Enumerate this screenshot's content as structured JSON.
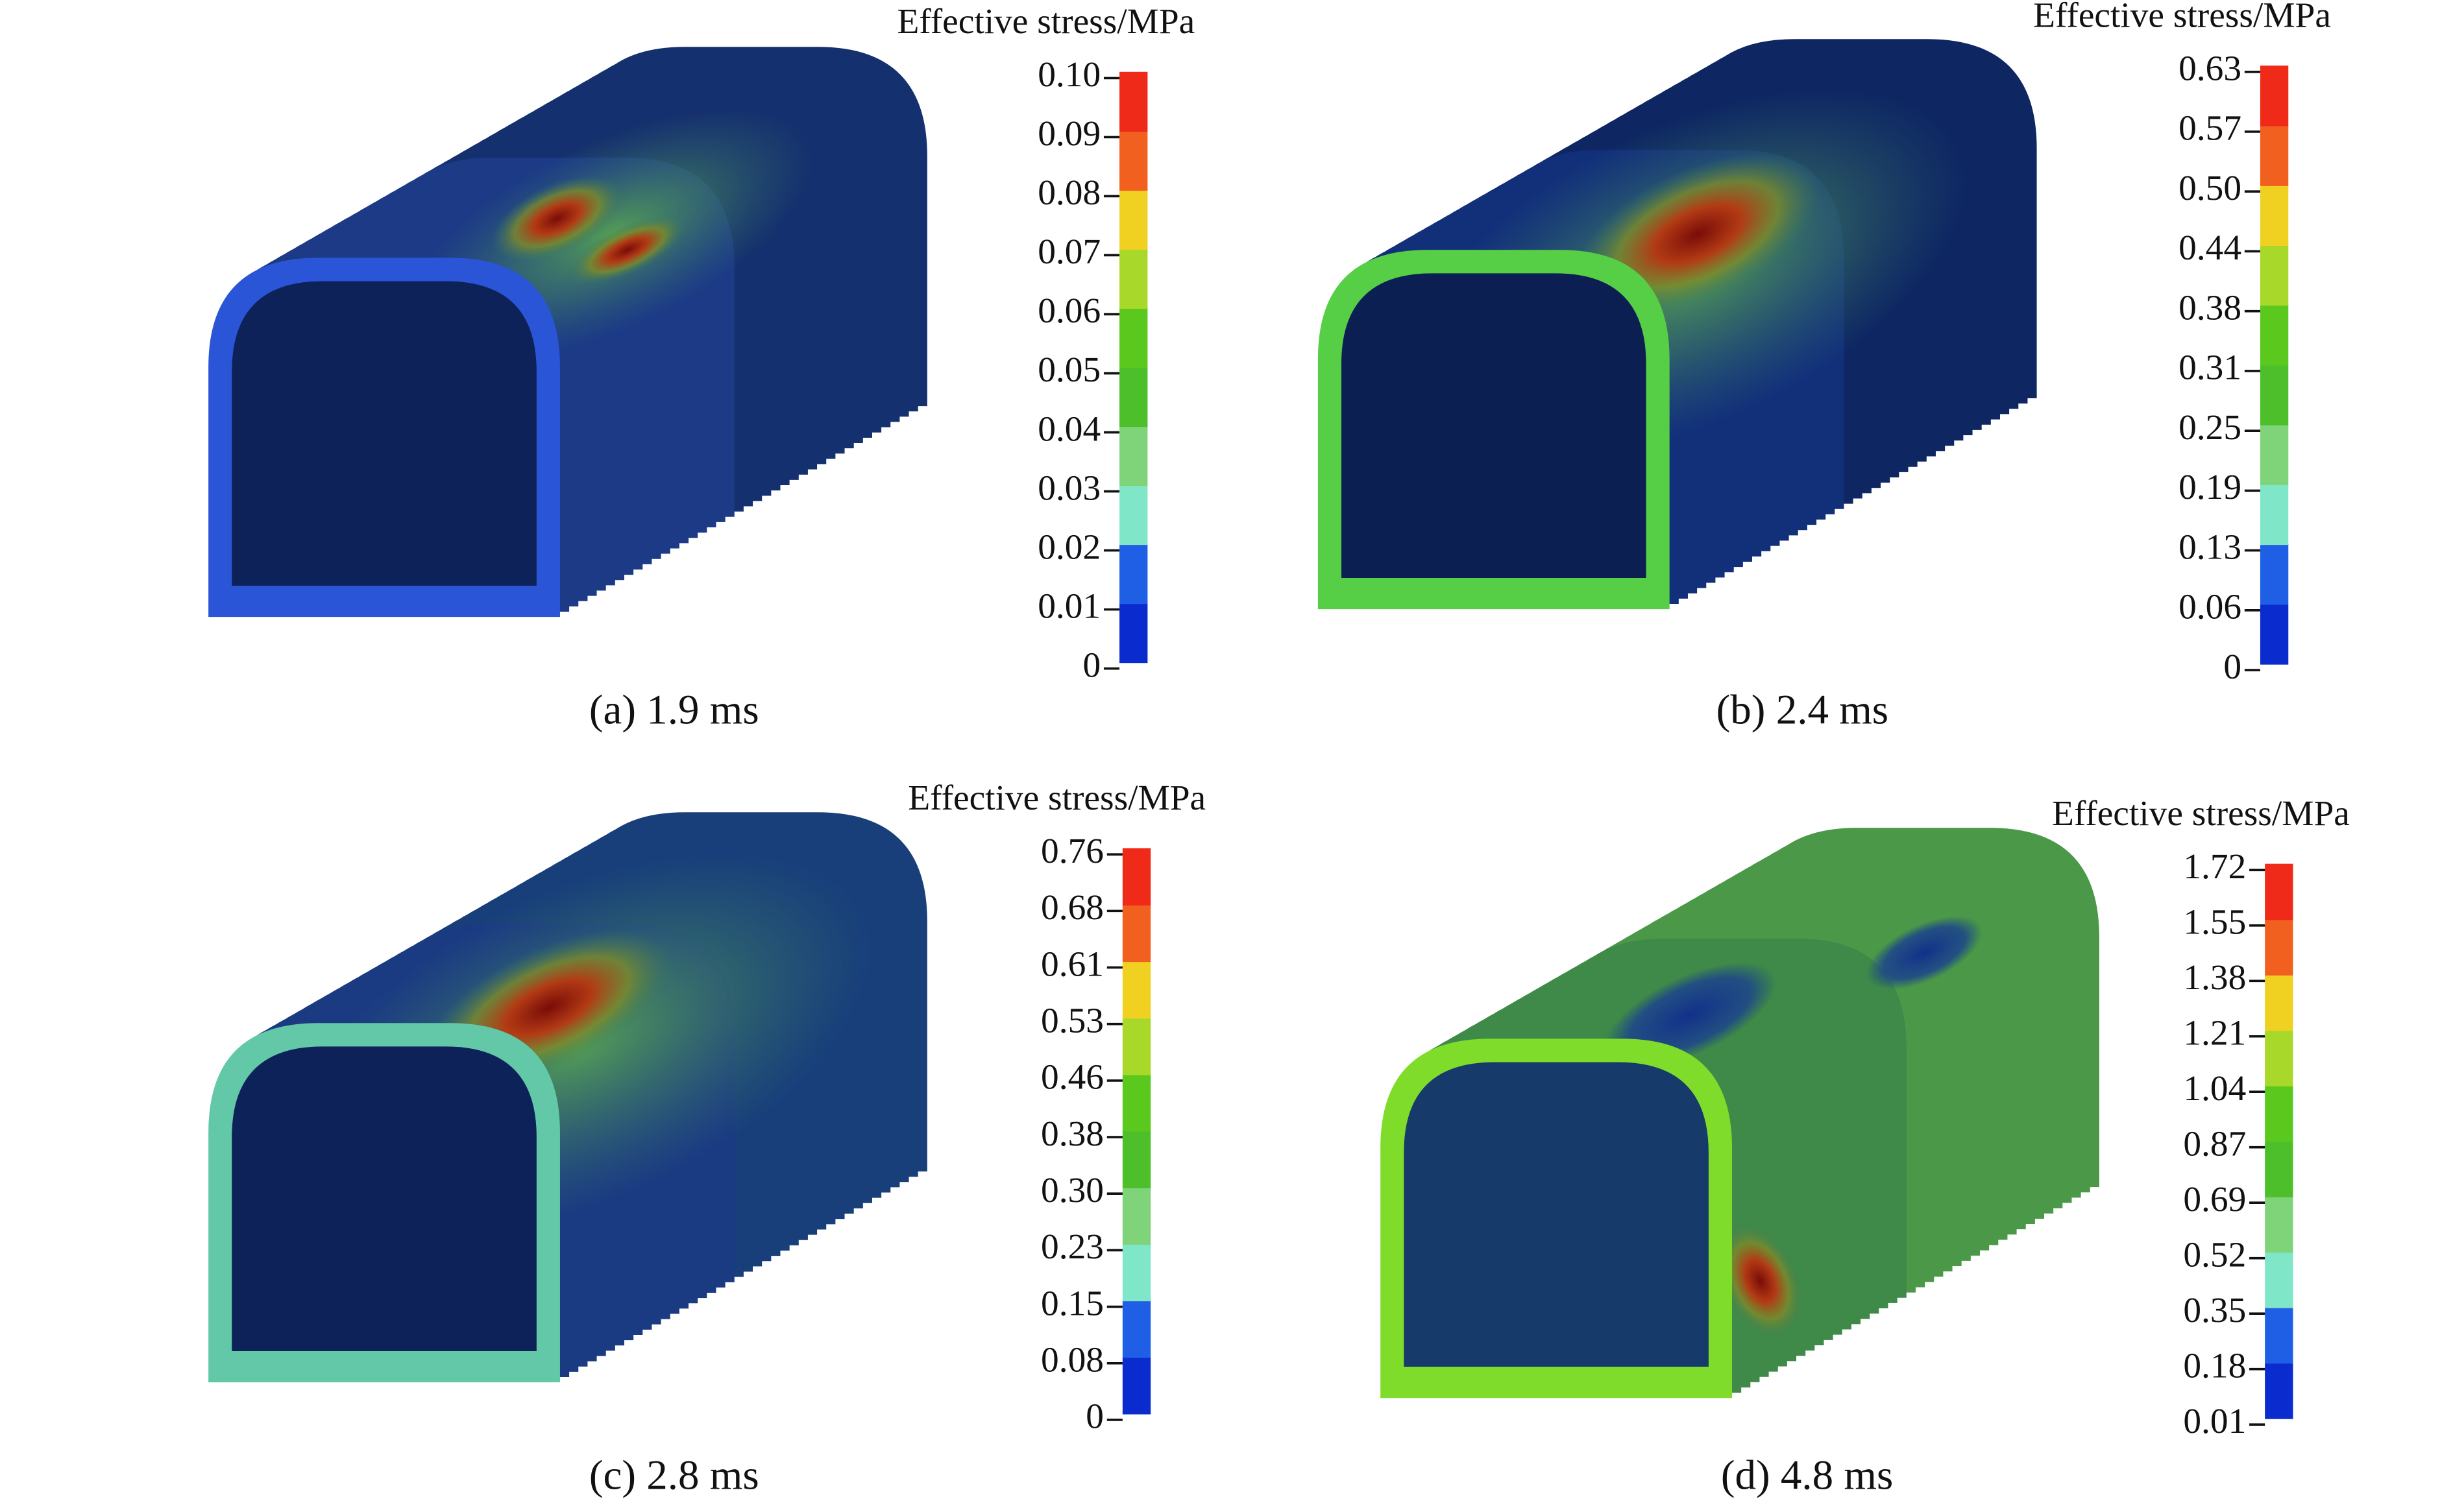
{
  "panels": [
    {
      "caption": "(a) 1.9 ms",
      "colorbar": {
        "title": "Effective stress/MPa",
        "ticks": [
          "0.10",
          "0.09",
          "0.08",
          "0.07",
          "0.06",
          "0.05",
          "0.04",
          "0.03",
          "0.02",
          "0.01",
          "0"
        ]
      }
    },
    {
      "caption": "(b) 2.4 ms",
      "colorbar": {
        "title": "Effective stress/MPa",
        "ticks": [
          "0.63",
          "0.57",
          "0.50",
          "0.44",
          "0.38",
          "0.31",
          "0.25",
          "0.19",
          "0.13",
          "0.06",
          "0"
        ]
      }
    },
    {
      "caption": "(c) 2.8 ms",
      "colorbar": {
        "title": "Effective stress/MPa",
        "ticks": [
          "0.76",
          "0.68",
          "0.61",
          "0.53",
          "0.46",
          "0.38",
          "0.30",
          "0.23",
          "0.15",
          "0.08",
          "0"
        ]
      }
    },
    {
      "caption": "(d) 4.8 ms",
      "colorbar": {
        "title": "Effective stress/MPa",
        "ticks": [
          "1.72",
          "1.55",
          "1.38",
          "1.21",
          "1.04",
          "0.87",
          "0.69",
          "0.52",
          "0.35",
          "0.18",
          "0.01"
        ]
      }
    }
  ]
}
